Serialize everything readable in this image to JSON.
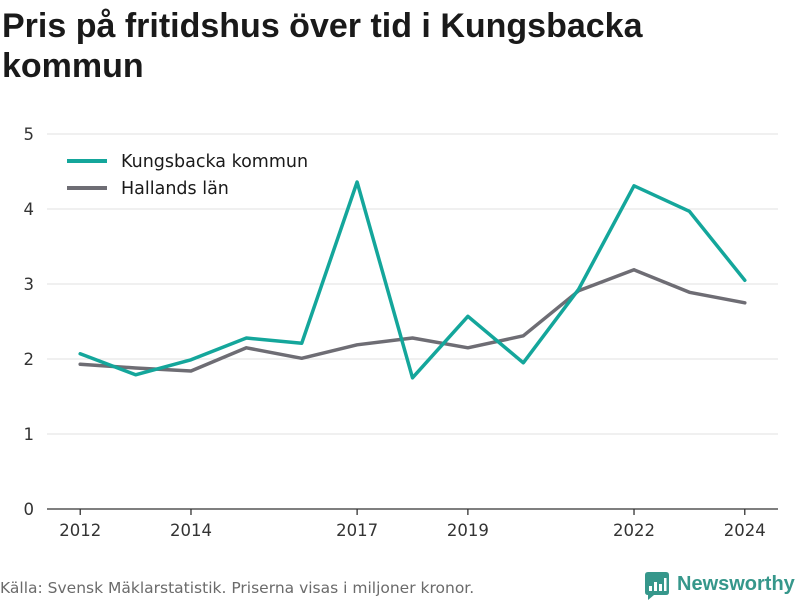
{
  "chart_data": {
    "type": "line",
    "title": "Pris på fritidshus över tid i Kungsbacka kommun",
    "x": [
      2012,
      2013,
      2014,
      2015,
      2016,
      2017,
      2018,
      2019,
      2020,
      2021,
      2022,
      2023,
      2024
    ],
    "series": [
      {
        "name": "Kungsbacka kommun",
        "color": "#14a69b",
        "values": [
          2.07,
          1.79,
          1.99,
          2.28,
          2.21,
          4.36,
          1.75,
          2.57,
          1.95,
          2.93,
          4.31,
          3.97,
          3.05
        ]
      },
      {
        "name": "Hallands län",
        "color": "#6e6d74",
        "values": [
          1.93,
          1.88,
          1.84,
          2.15,
          2.01,
          2.19,
          2.28,
          2.15,
          2.31,
          2.91,
          3.19,
          2.89,
          2.75
        ]
      }
    ],
    "xticks": [
      2012,
      2014,
      2017,
      2019,
      2022,
      2024
    ],
    "yticks": [
      0,
      1,
      2,
      3,
      4,
      5
    ],
    "xlim": [
      2011.4,
      2024.6
    ],
    "ylim": [
      0,
      5
    ],
    "grid": true,
    "legend": "top-left"
  },
  "footer": {
    "source": "Källa: Svensk Mäklarstatistik. Priserna visas i miljoner kronor.",
    "logo_text": "Newsworthy"
  },
  "colors": {
    "brand": "#36978b"
  }
}
